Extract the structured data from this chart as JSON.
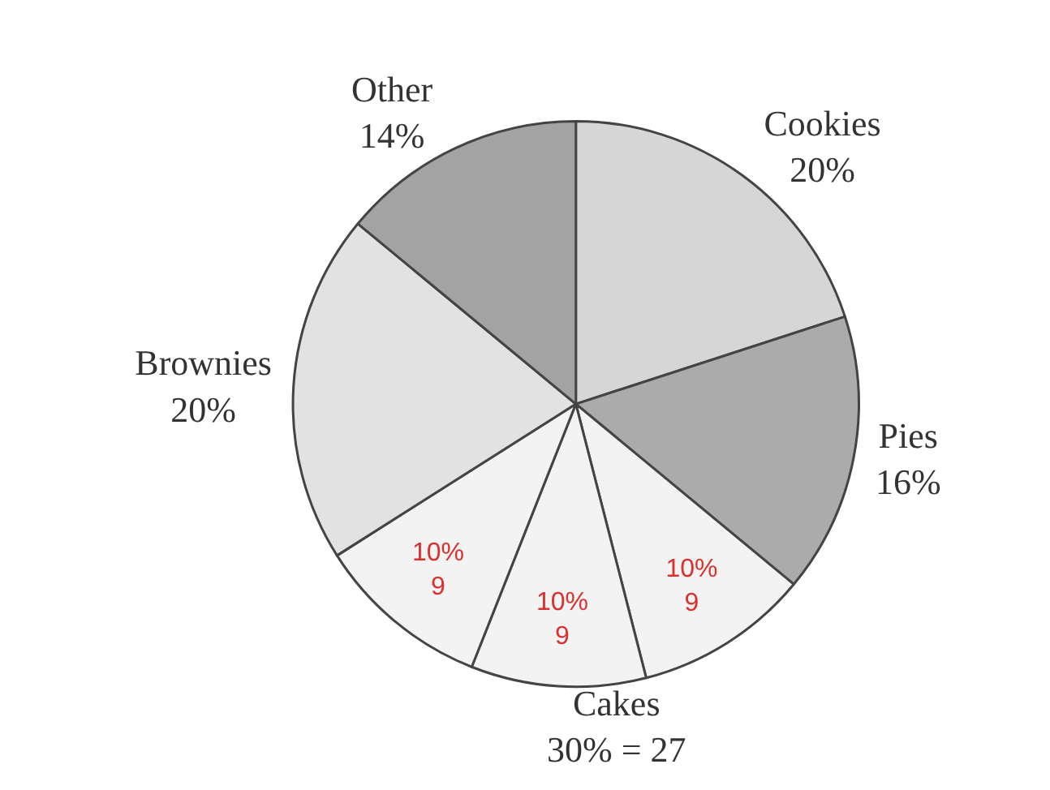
{
  "chart_data": {
    "type": "pie",
    "categories": [
      "Cookies",
      "Pies",
      null,
      null,
      null,
      "Brownies",
      "Other"
    ],
    "values": [
      20,
      16,
      10,
      10,
      10,
      20,
      14
    ],
    "value_labels": [
      "20%",
      "16%",
      "10%\n9",
      "10%\n9",
      "10%\n9",
      "20%",
      "14%"
    ],
    "colors": [
      "#d6d6d6",
      "#ababab",
      "#f3f3f3",
      "#f3f3f3",
      "#f3f3f3",
      "#e2e2e2",
      "#a3a3a3"
    ],
    "annotations": [
      "Cakes\n30% = 27"
    ]
  }
}
